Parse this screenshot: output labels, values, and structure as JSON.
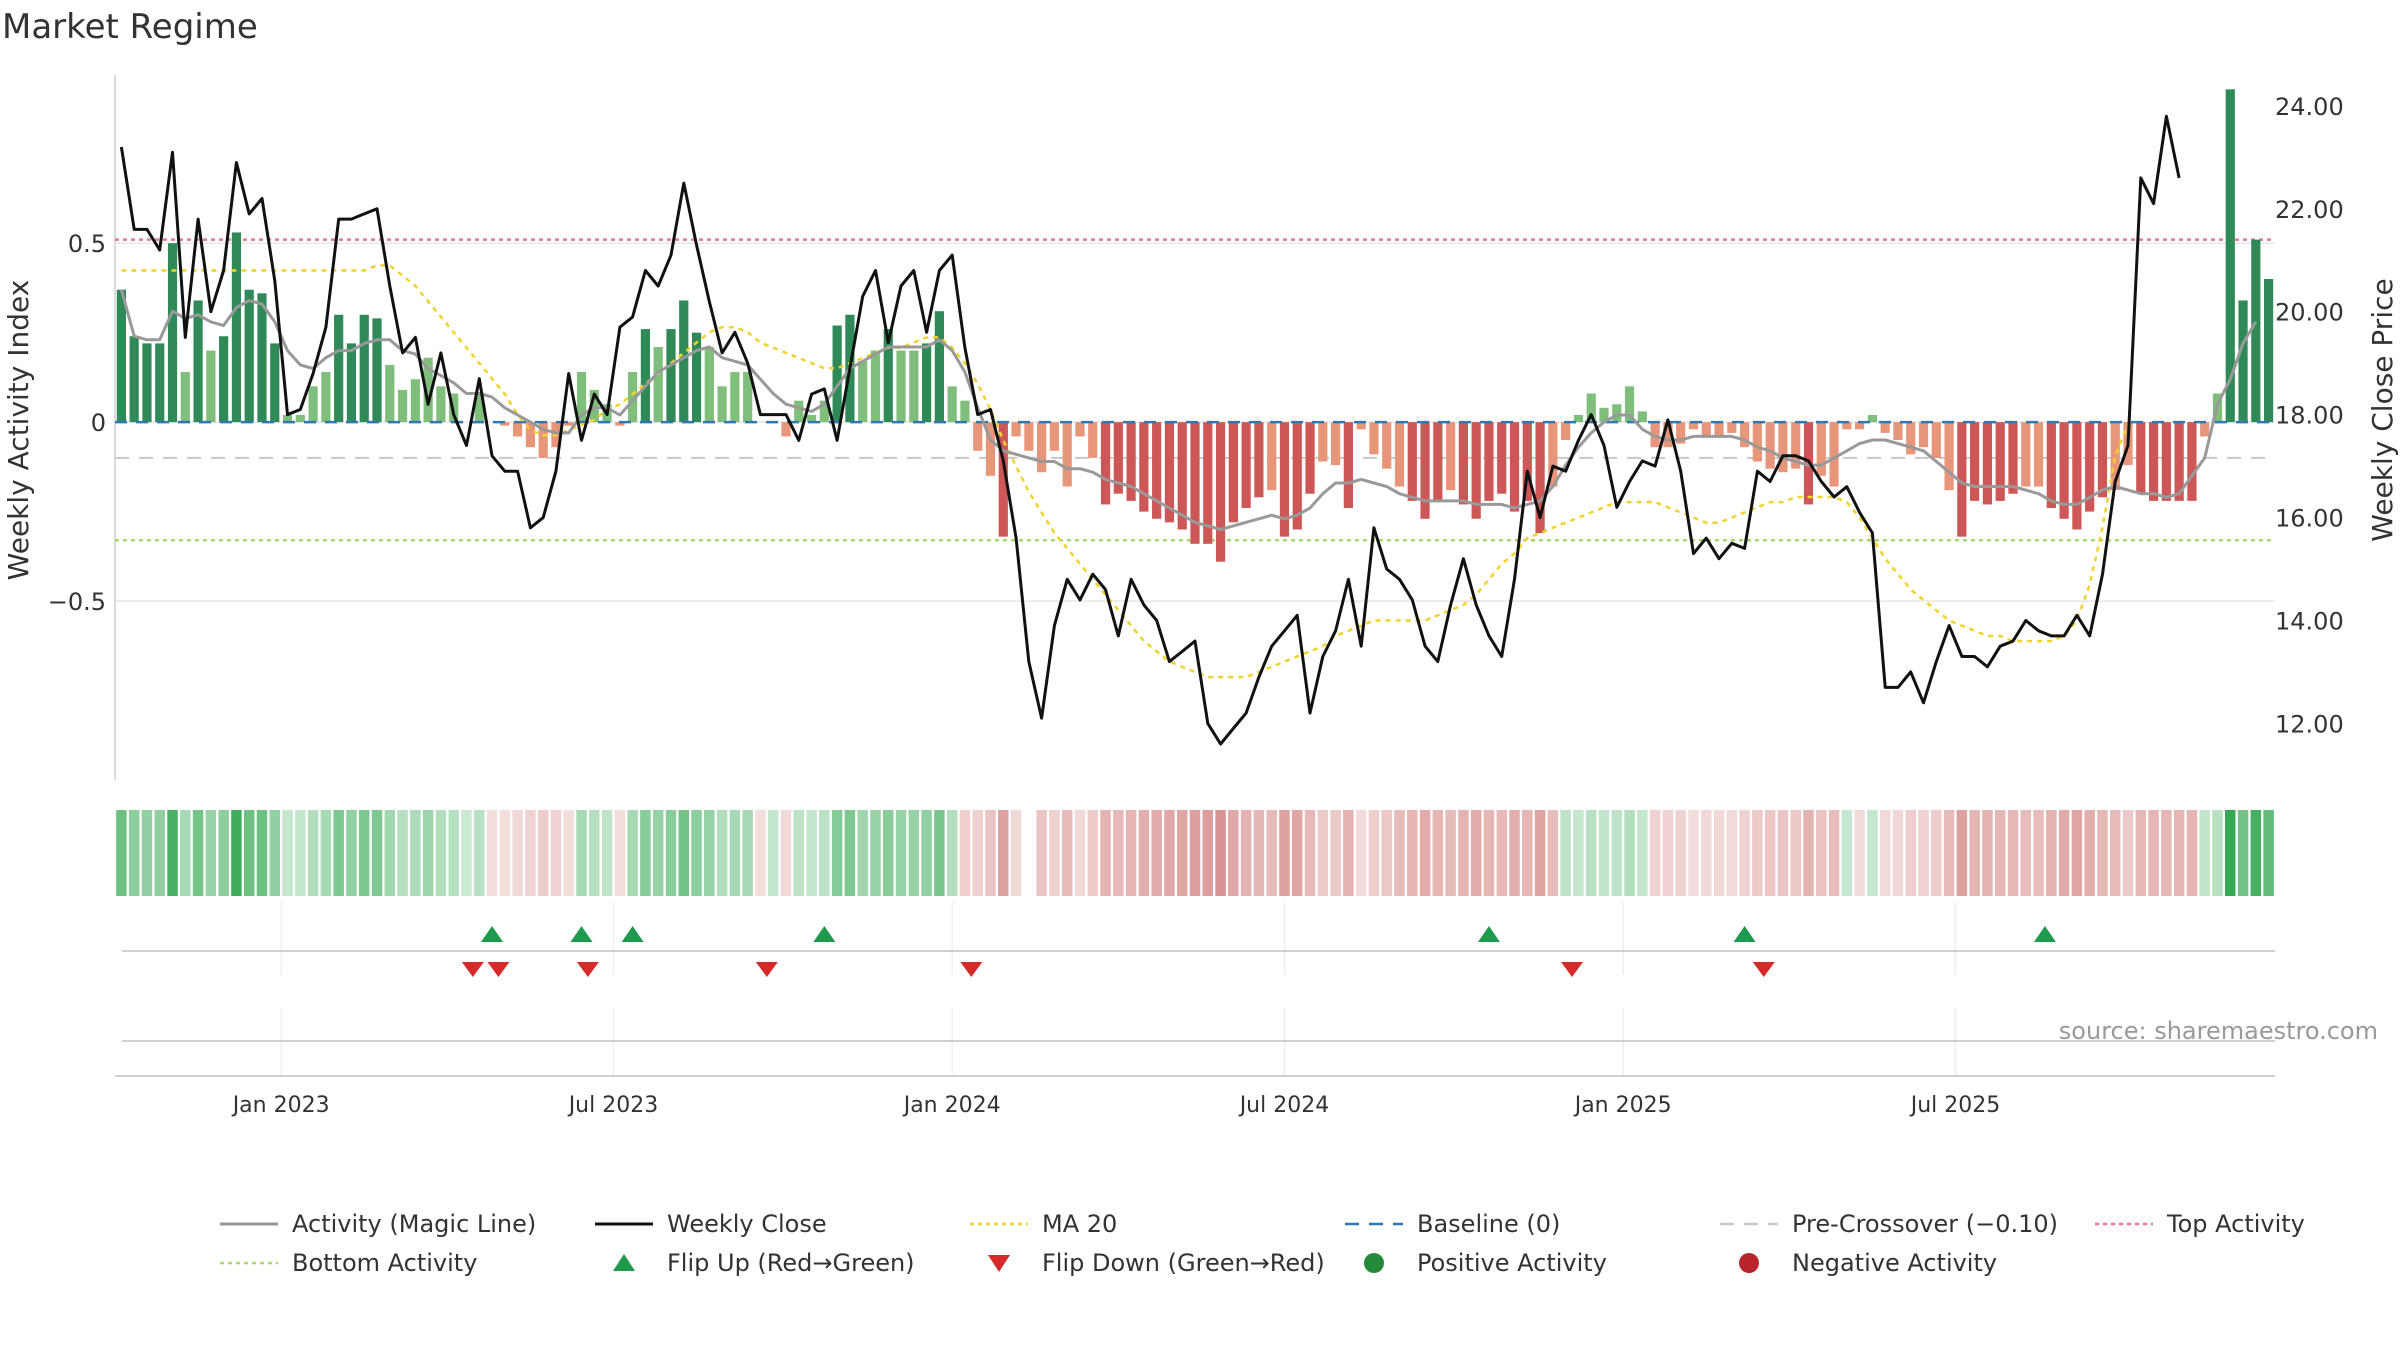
{
  "chart_data": {
    "type": "bar",
    "title": "Market Regime",
    "ylabel_left": "Weekly Activity Index",
    "ylabel_right": "Weekly Close Price",
    "source": "source: sharemaestro.com",
    "x_ticks": [
      "Jan 2023",
      "Jul 2023",
      "Jan 2024",
      "Jul 2024",
      "Jan 2025",
      "Jul 2025"
    ],
    "x_tick_weeks": [
      13,
      39,
      65.5,
      91.5,
      118,
      144
    ],
    "left_axis": {
      "ylim": [
        -1.0,
        0.97
      ],
      "ticks": [
        0.5,
        0,
        -0.5
      ],
      "tick_labels": [
        "0.5",
        "0",
        "−0.5"
      ]
    },
    "right_axis": {
      "ylim": [
        10.9,
        24.6
      ],
      "ticks": [
        24,
        22,
        20,
        18,
        16,
        14,
        12
      ],
      "tick_labels": [
        "24.00",
        "22.00",
        "20.00",
        "18.00",
        "16.00",
        "14.00",
        "12.00"
      ]
    },
    "reference_lines": {
      "top_activity": 0.51,
      "bottom_activity": -0.33,
      "pre_crossover": -0.1,
      "baseline": 0
    },
    "activity": [
      0.37,
      0.24,
      0.22,
      0.22,
      0.5,
      0.14,
      0.34,
      0.2,
      0.24,
      0.53,
      0.37,
      0.36,
      0.22,
      0.02,
      0.02,
      0.1,
      0.14,
      0.3,
      0.22,
      0.3,
      0.29,
      0.16,
      0.09,
      0.12,
      0.18,
      0.1,
      0.08,
      0,
      0.08,
      0,
      -0.01,
      -0.04,
      -0.07,
      -0.1,
      -0.07,
      -0.01,
      0.14,
      0.09,
      0.05,
      -0.01,
      0.14,
      0.26,
      0.21,
      0.26,
      0.34,
      0.25,
      0.21,
      0.1,
      0.14,
      0.14,
      0,
      0,
      -0.04,
      0.06,
      0.02,
      0.06,
      0.27,
      0.3,
      0.17,
      0.2,
      0.26,
      0.2,
      0.2,
      0.22,
      0.31,
      0.1,
      0.06,
      -0.08,
      -0.15,
      -0.32,
      -0.04,
      -0.08,
      -0.14,
      -0.08,
      -0.18,
      -0.04,
      -0.1,
      -0.23,
      -0.2,
      -0.22,
      -0.25,
      -0.27,
      -0.28,
      -0.3,
      -0.34,
      -0.34,
      -0.39,
      -0.28,
      -0.24,
      -0.21,
      -0.19,
      -0.32,
      -0.3,
      -0.2,
      -0.11,
      -0.12,
      -0.24,
      -0.02,
      -0.09,
      -0.13,
      -0.18,
      -0.22,
      -0.27,
      -0.22,
      -0.19,
      -0.23,
      -0.27,
      -0.22,
      -0.2,
      -0.25,
      -0.22,
      -0.31,
      -0.18,
      -0.05,
      0.02,
      0.08,
      0.04,
      0.05,
      0.1,
      0.03,
      -0.07,
      -0.07,
      -0.06,
      -0.02,
      -0.04,
      -0.04,
      -0.03,
      -0.07,
      -0.11,
      -0.13,
      -0.14,
      -0.13,
      -0.23,
      -0.15,
      -0.18,
      -0.02,
      -0.02,
      0.02,
      -0.03,
      -0.05,
      -0.09,
      -0.07,
      -0.1,
      -0.19,
      -0.32,
      -0.22,
      -0.23,
      -0.22,
      -0.2,
      -0.18,
      -0.18,
      -0.24,
      -0.27,
      -0.3,
      -0.25,
      -0.21,
      -0.19,
      -0.12,
      -0.2,
      -0.22,
      -0.22,
      -0.22,
      -0.22,
      -0.04,
      0.08,
      0.93,
      0.34,
      0.51,
      0.4
    ],
    "magic_line": [
      0.37,
      0.24,
      0.23,
      0.23,
      0.31,
      0.29,
      0.3,
      0.28,
      0.27,
      0.32,
      0.34,
      0.33,
      0.28,
      0.2,
      0.16,
      0.15,
      0.18,
      0.2,
      0.2,
      0.22,
      0.23,
      0.23,
      0.2,
      0.19,
      0.15,
      0.13,
      0.11,
      0.08,
      0.08,
      0.07,
      0.04,
      0.02,
      0,
      -0.02,
      -0.03,
      -0.03,
      0.02,
      0.04,
      0.04,
      0.02,
      0.06,
      0.1,
      0.14,
      0.16,
      0.18,
      0.2,
      0.21,
      0.18,
      0.17,
      0.16,
      0.12,
      0.08,
      0.05,
      0.04,
      0.03,
      0.05,
      0.1,
      0.15,
      0.17,
      0.19,
      0.21,
      0.21,
      0.21,
      0.21,
      0.23,
      0.2,
      0.14,
      0.04,
      -0.05,
      -0.08,
      -0.09,
      -0.1,
      -0.11,
      -0.11,
      -0.13,
      -0.13,
      -0.14,
      -0.16,
      -0.17,
      -0.18,
      -0.2,
      -0.22,
      -0.24,
      -0.26,
      -0.28,
      -0.29,
      -0.3,
      -0.29,
      -0.28,
      -0.27,
      -0.26,
      -0.27,
      -0.26,
      -0.24,
      -0.2,
      -0.17,
      -0.17,
      -0.16,
      -0.17,
      -0.18,
      -0.2,
      -0.21,
      -0.22,
      -0.22,
      -0.22,
      -0.22,
      -0.23,
      -0.23,
      -0.23,
      -0.24,
      -0.23,
      -0.22,
      -0.18,
      -0.12,
      -0.07,
      -0.03,
      0,
      0.02,
      0.02,
      -0.02,
      -0.04,
      -0.05,
      -0.05,
      -0.04,
      -0.04,
      -0.04,
      -0.04,
      -0.05,
      -0.07,
      -0.08,
      -0.1,
      -0.11,
      -0.12,
      -0.12,
      -0.1,
      -0.08,
      -0.06,
      -0.05,
      -0.05,
      -0.06,
      -0.07,
      -0.08,
      -0.11,
      -0.14,
      -0.17,
      -0.18,
      -0.18,
      -0.18,
      -0.18,
      -0.19,
      -0.2,
      -0.22,
      -0.23,
      -0.23,
      -0.21,
      -0.19,
      -0.18,
      -0.19,
      -0.2,
      -0.2,
      -0.21,
      -0.2,
      -0.15,
      -0.1,
      0.05,
      0.12,
      0.22,
      0.28
    ],
    "weekly_close": [
      23.2,
      21.6,
      21.6,
      21.2,
      23.1,
      19.5,
      21.8,
      20.0,
      20.8,
      22.9,
      21.9,
      22.2,
      20.6,
      18.0,
      18.1,
      18.8,
      19.7,
      21.8,
      21.8,
      21.9,
      22.0,
      20.5,
      19.2,
      19.5,
      18.2,
      19.2,
      18.0,
      17.4,
      18.7,
      17.2,
      16.9,
      16.9,
      15.8,
      16.0,
      16.9,
      18.8,
      17.5,
      18.4,
      18.0,
      19.7,
      19.9,
      20.8,
      20.5,
      21.1,
      22.5,
      21.3,
      20.2,
      19.2,
      19.6,
      19.0,
      18.0,
      18.0,
      18.0,
      17.5,
      18.4,
      18.5,
      17.5,
      18.9,
      20.3,
      20.8,
      19.4,
      20.5,
      20.8,
      19.6,
      20.8,
      21.1,
      19.3,
      18.0,
      18.1,
      17.1,
      15.6,
      13.2,
      12.1,
      13.9,
      14.8,
      14.4,
      14.9,
      14.6,
      13.7,
      14.8,
      14.3,
      14.0,
      13.2,
      13.4,
      13.6,
      12.0,
      11.6,
      11.9,
      12.2,
      12.9,
      13.5,
      13.8,
      14.1,
      12.2,
      13.3,
      13.8,
      14.8,
      13.5,
      15.8,
      15.0,
      14.8,
      14.4,
      13.5,
      13.2,
      14.3,
      15.2,
      14.3,
      13.7,
      13.3,
      14.8,
      16.9,
      16.0,
      17.0,
      16.9,
      17.5,
      18.0,
      17.4,
      16.2,
      16.7,
      17.1,
      17.0,
      17.9,
      16.9,
      15.3,
      15.6,
      15.2,
      15.5,
      15.4,
      16.9,
      16.7,
      17.2,
      17.2,
      17.1,
      16.7,
      16.4,
      16.6,
      16.1,
      15.7,
      12.7,
      12.7,
      13.0,
      12.4,
      13.2,
      13.9,
      13.3,
      13.3,
      13.1,
      13.5,
      13.6,
      14.0,
      13.8,
      13.7,
      13.7,
      14.1,
      13.7,
      14.9,
      16.7,
      17.4,
      22.6,
      22.1,
      23.8,
      22.6
    ],
    "ma20": [
      20.8,
      20.8,
      20.8,
      20.8,
      20.8,
      20.8,
      20.8,
      20.8,
      20.8,
      20.8,
      20.8,
      20.8,
      20.8,
      20.8,
      20.8,
      20.8,
      20.8,
      20.8,
      20.8,
      20.8,
      20.9,
      20.9,
      20.7,
      20.5,
      20.2,
      19.9,
      19.6,
      19.3,
      19.0,
      18.7,
      18.4,
      18.0,
      17.7,
      17.6,
      17.6,
      17.7,
      17.8,
      17.9,
      18.1,
      18.2,
      18.4,
      18.6,
      18.8,
      19.0,
      19.2,
      19.4,
      19.6,
      19.7,
      19.7,
      19.6,
      19.4,
      19.3,
      19.2,
      19.1,
      19.0,
      18.9,
      18.9,
      19.0,
      19.1,
      19.2,
      19.3,
      19.3,
      19.4,
      19.5,
      19.5,
      19.3,
      19.0,
      18.6,
      18.1,
      17.5,
      17.0,
      16.5,
      16.1,
      15.7,
      15.4,
      15.1,
      14.8,
      14.5,
      14.2,
      13.9,
      13.6,
      13.4,
      13.2,
      13.1,
      13.0,
      12.9,
      12.9,
      12.9,
      12.9,
      13.0,
      13.1,
      13.2,
      13.3,
      13.4,
      13.5,
      13.7,
      13.8,
      13.9,
      14.0,
      14.0,
      14.0,
      14.0,
      14.0,
      14.1,
      14.2,
      14.3,
      14.5,
      14.8,
      15.1,
      15.3,
      15.6,
      15.7,
      15.8,
      15.9,
      16.0,
      16.1,
      16.2,
      16.3,
      16.3,
      16.3,
      16.3,
      16.2,
      16.1,
      16.0,
      15.9,
      15.9,
      16.0,
      16.1,
      16.2,
      16.3,
      16.3,
      16.4,
      16.4,
      16.4,
      16.4,
      16.3,
      16.0,
      15.6,
      15.2,
      14.9,
      14.6,
      14.4,
      14.2,
      14.0,
      13.9,
      13.8,
      13.7,
      13.7,
      13.6,
      13.6,
      13.6,
      13.6,
      13.7,
      14.0,
      14.7,
      15.8,
      17.2,
      17.8
    ],
    "flip_up_weeks": [
      29.5,
      36.5,
      40.5,
      55.5,
      107.5,
      127.5,
      151
    ],
    "flip_down_weeks": [
      28,
      30,
      37,
      51,
      67,
      114,
      129
    ],
    "regime_strip": [
      0.37,
      0.24,
      0.22,
      0.22,
      0.5,
      0.14,
      0.34,
      0.2,
      0.24,
      0.53,
      0.37,
      0.36,
      0.22,
      0.02,
      0.02,
      0.1,
      0.14,
      0.3,
      0.22,
      0.3,
      0.29,
      0.16,
      0.09,
      0.12,
      0.18,
      0.1,
      0.08,
      0,
      0.08,
      -0.01,
      -0.01,
      -0.04,
      -0.07,
      -0.1,
      -0.07,
      -0.01,
      0.14,
      0.09,
      0.05,
      -0.01,
      0.14,
      0.26,
      0.21,
      0.26,
      0.34,
      0.25,
      0.21,
      0.1,
      0.14,
      0.14,
      -0.01,
      0.02,
      -0.04,
      0.06,
      0.02,
      0.06,
      0.27,
      0.3,
      0.17,
      0.2,
      0.26,
      0.2,
      0.2,
      0.22,
      0.31,
      0.1,
      -0.08,
      -0.08,
      -0.15,
      -0.32,
      -0.04,
      null,
      -0.14,
      -0.08,
      -0.18,
      -0.04,
      -0.1,
      -0.23,
      -0.2,
      -0.22,
      -0.25,
      -0.27,
      -0.28,
      -0.3,
      -0.34,
      -0.34,
      -0.39,
      -0.28,
      -0.24,
      -0.21,
      -0.19,
      -0.32,
      -0.3,
      -0.2,
      -0.11,
      -0.12,
      -0.24,
      -0.02,
      -0.09,
      -0.13,
      -0.18,
      -0.22,
      -0.27,
      -0.22,
      -0.19,
      -0.23,
      -0.27,
      -0.22,
      -0.2,
      -0.25,
      -0.22,
      -0.31,
      -0.18,
      0.05,
      0.02,
      0.08,
      0.04,
      0.05,
      0.1,
      0.03,
      -0.07,
      -0.07,
      -0.06,
      -0.02,
      -0.04,
      -0.04,
      -0.03,
      -0.07,
      -0.11,
      -0.13,
      -0.14,
      -0.13,
      -0.23,
      -0.15,
      -0.18,
      0.02,
      -0.02,
      0.02,
      -0.03,
      -0.05,
      -0.09,
      -0.07,
      -0.1,
      -0.19,
      -0.32,
      -0.22,
      -0.23,
      -0.22,
      -0.2,
      -0.18,
      -0.18,
      -0.24,
      -0.27,
      -0.3,
      -0.25,
      -0.21,
      -0.19,
      -0.12,
      -0.2,
      -0.22,
      -0.22,
      -0.22,
      -0.22,
      0.04,
      0.08,
      0.93,
      0.34,
      0.51,
      0.4
    ]
  },
  "legend": [
    {
      "label": "Activity (Magic Line)",
      "symbol": "line",
      "color": "#999999"
    },
    {
      "label": "Weekly Close",
      "symbol": "line",
      "color": "#111111"
    },
    {
      "label": "MA 20",
      "symbol": "dotted",
      "color": "#f2d22c"
    },
    {
      "label": "Baseline (0)",
      "symbol": "dashed",
      "color": "#2f78b4"
    },
    {
      "label": "Pre-Crossover (−0.10)",
      "symbol": "dashed",
      "color": "#c8c8c8"
    },
    {
      "label": "Top Activity",
      "symbol": "dotted",
      "color": "#e8798e"
    },
    {
      "label": "Bottom Activity",
      "symbol": "dotted",
      "color": "#a6d86e"
    },
    {
      "label": "Flip Up (Red→Green)",
      "symbol": "triangle-up",
      "color": "#1f9a4c"
    },
    {
      "label": "Flip Down (Green→Red)",
      "symbol": "triangle-down",
      "color": "#d62a2a"
    },
    {
      "label": "Positive Activity",
      "symbol": "circle",
      "color": "#238b3a"
    },
    {
      "label": "Negative Activity",
      "symbol": "circle",
      "color": "#b8262c"
    }
  ],
  "colors": {
    "pos_strong": "#2f8a57",
    "pos_light": "#7fbf7b",
    "neg_strong": "#cd5656",
    "neg_light": "#e8967a",
    "magic": "#999999",
    "close": "#111111",
    "ma": "#f2d22c",
    "baseline": "#2f78b4",
    "pre": "#c8c8c8",
    "top": "#e8798e",
    "bottom": "#a6d86e",
    "up": "#1f9a4c",
    "down": "#d62a2a",
    "grid": "#e6e6e6",
    "axis": "#d0d0d0",
    "text": "#333333"
  }
}
